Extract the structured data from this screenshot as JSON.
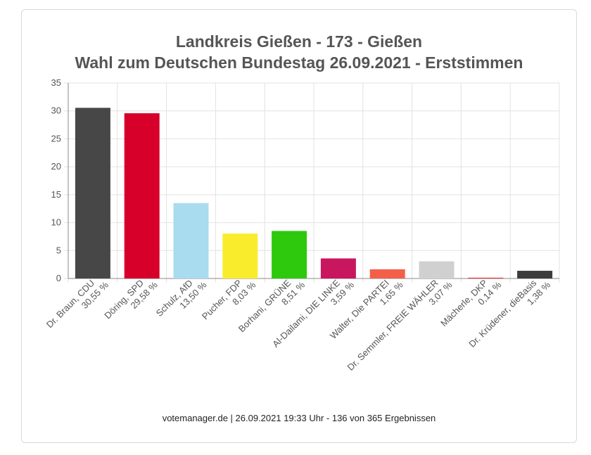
{
  "chart_data": {
    "type": "bar",
    "title": "Landkreis Gießen - 173 - Gießen",
    "subtitle": "Wahl zum Deutschen Bundestag 26.09.2021  - Erststimmen",
    "categories": [
      "Dr. Braun, CDU",
      "Döring, SPD",
      "Schulz, AfD",
      "Pucher, FDP",
      "Borhani, GRÜNE",
      "Al-Dailami, DIE LINKE",
      "Walter, Die PARTEI",
      "Dr. Semmler, FREIE WÄHLER",
      "Mächerle, DKP",
      "Dr. Krüdener, dieBasis"
    ],
    "value_labels": [
      "30,55 %",
      "29,58 %",
      "13,50 %",
      "8,03 %",
      "8,51 %",
      "3,59 %",
      "1,65 %",
      "3,07 %",
      "0,14 %",
      "1,38 %"
    ],
    "values": [
      30.55,
      29.58,
      13.5,
      8.03,
      8.51,
      3.59,
      1.65,
      3.07,
      0.14,
      1.38
    ],
    "colors": [
      "#474747",
      "#d6002a",
      "#a8dcee",
      "#f9ec2d",
      "#2ec90c",
      "#c8175e",
      "#f45f4a",
      "#d0d0d0",
      "#e8333a",
      "#3c3c3c"
    ],
    "ylim": [
      0,
      35
    ],
    "yticks": [
      "0",
      "5",
      "10",
      "15",
      "20",
      "25",
      "30",
      "35"
    ],
    "grid": true
  },
  "footer": "votemanager.de | 26.09.2021 19:33 Uhr - 136 von 365 Ergebnissen"
}
